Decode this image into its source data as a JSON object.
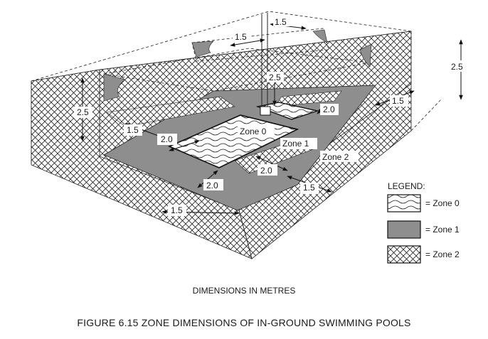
{
  "figure": {
    "title": "FIGURE  6.15   ZONE DIMENSIONS OF IN-GROUND SWIMMING POOLS",
    "units_note": "DIMENSIONS IN METRES"
  },
  "dimensions": {
    "back_height": "2.5",
    "back_width": "1.5",
    "inner_depth": "1.5",
    "post_height": "2.5",
    "right_height": "2.5",
    "small_pool_offset": "2.0",
    "right_side": "1.5",
    "left_height": "2.5",
    "left_offset": "1.5",
    "pool_left_gap": "2.0",
    "front_inner_gap": "2.0",
    "front_offset": "1.5",
    "right_inner_gap": "2.0",
    "right_front_offset": "1.5"
  },
  "zones": {
    "zone0": "Zone 0",
    "zone1": "Zone 1",
    "zone2": "Zone 2"
  },
  "legend": {
    "heading": "LEGEND:",
    "items": [
      "= Zone 0",
      "= Zone 1",
      "= Zone 2"
    ]
  }
}
